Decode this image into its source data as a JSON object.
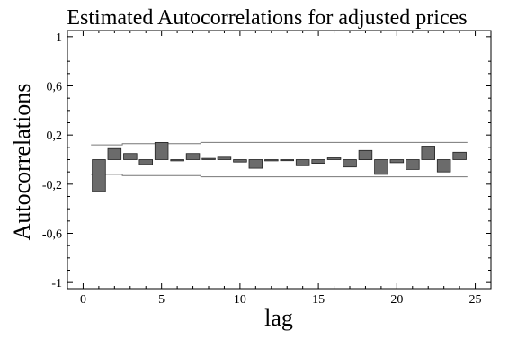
{
  "chart_data": {
    "type": "bar",
    "title": "Estimated Autocorrelations for adjusted prices",
    "xlabel": "lag",
    "ylabel": "Autocorrelations",
    "xlim": [
      -1,
      26
    ],
    "ylim": [
      -1.05,
      1.05
    ],
    "x_ticks": [
      0,
      5,
      10,
      15,
      20,
      25
    ],
    "y_ticks": [
      -1,
      -0.6,
      -0.2,
      0.2,
      0.6,
      1
    ],
    "y_tick_labels": [
      "-1",
      "-0,6",
      "-0,2",
      "0,2",
      "0,6",
      "1"
    ],
    "grid": false,
    "bar_color": "#6b6b6b",
    "bar_edge_color": "#222222",
    "series": [
      {
        "x": [
          1,
          2,
          3,
          4,
          5,
          6,
          7,
          8,
          9,
          10,
          11,
          12,
          13,
          14,
          15,
          16,
          17,
          18,
          19,
          20,
          21,
          22,
          23,
          24
        ],
        "values": [
          -0.26,
          0.09,
          0.05,
          -0.04,
          0.14,
          -0.01,
          0.05,
          0.01,
          0.02,
          -0.02,
          -0.07,
          -0.01,
          0.0,
          -0.05,
          -0.03,
          0.015,
          -0.06,
          0.075,
          -0.12,
          -0.025,
          -0.08,
          0.11,
          -0.1,
          0.06
        ]
      }
    ],
    "confidence_band": {
      "upper": [
        0.12,
        0.12,
        0.13,
        0.13,
        0.13,
        0.13,
        0.13,
        0.14,
        0.14,
        0.14,
        0.14,
        0.14,
        0.14,
        0.14,
        0.14,
        0.14,
        0.14,
        0.14,
        0.14,
        0.14,
        0.14,
        0.14,
        0.14,
        0.14
      ],
      "lower": [
        -0.12,
        -0.12,
        -0.13,
        -0.13,
        -0.13,
        -0.13,
        -0.13,
        -0.14,
        -0.14,
        -0.14,
        -0.14,
        -0.14,
        -0.14,
        -0.14,
        -0.14,
        -0.14,
        -0.14,
        -0.14,
        -0.14,
        -0.14,
        -0.14,
        -0.14,
        -0.14,
        -0.14
      ]
    },
    "line_color": "#777777"
  }
}
